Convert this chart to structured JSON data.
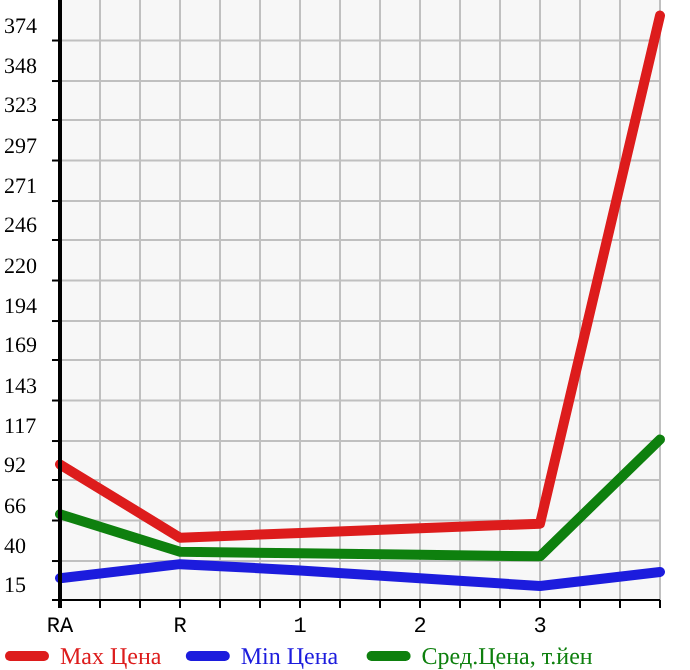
{
  "chart_data": {
    "type": "line",
    "categories": [
      "RA",
      "R",
      "1",
      "2",
      "3",
      null
    ],
    "series": [
      {
        "name": "Max Цена",
        "color": "#dd1c1c",
        "values": [
          102,
          55,
          58,
          61,
          64,
          390
        ]
      },
      {
        "name": "Min Цена",
        "color": "#1c1cdd",
        "values": [
          29,
          38,
          34,
          29,
          24,
          33
        ]
      },
      {
        "name": "Сред.Цена, т.йен",
        "color": "#0e800e",
        "values": [
          70,
          46,
          45,
          44,
          43,
          118
        ]
      }
    ],
    "ylim": [
      15,
      400
    ],
    "yticks": [
      15,
      40,
      66,
      92,
      117,
      143,
      169,
      194,
      220,
      246,
      271,
      297,
      323,
      348,
      374
    ],
    "grid": true,
    "legend": "bottom",
    "marker": "none",
    "line_style": "solid"
  }
}
